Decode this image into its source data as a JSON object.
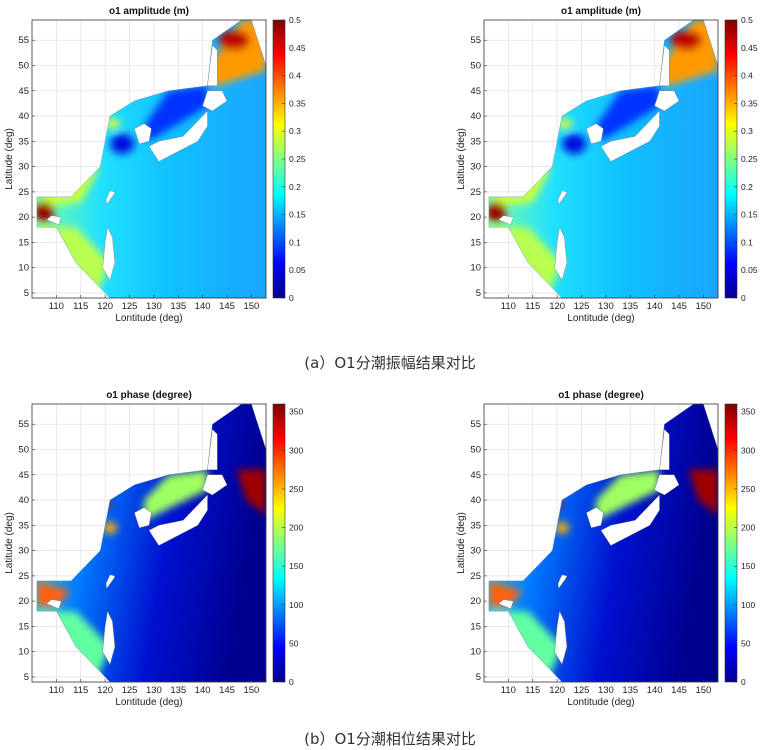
{
  "captions": {
    "a": "(a）O1分潮振幅结果对比",
    "b": "(b）O1分潮相位结果对比"
  },
  "colors": {
    "land": "#ffffff",
    "grid": "#e3e3e3",
    "axis": "#333333"
  },
  "chart_data": [
    {
      "type": "heatmap",
      "title": "o1 amplitude (m)",
      "xlabel": "Lontitude (deg)",
      "ylabel": "Latitude (deg)",
      "xlim": [
        105,
        153
      ],
      "ylim": [
        4,
        59
      ],
      "xticks": [
        110,
        115,
        120,
        125,
        130,
        135,
        140,
        145,
        150
      ],
      "yticks": [
        5,
        10,
        15,
        20,
        25,
        30,
        35,
        40,
        45,
        50,
        55
      ],
      "colorbar": {
        "range": [
          0,
          0.5
        ],
        "ticks": [
          "0",
          "0.05",
          "0.1",
          "0.15",
          "0.2",
          "0.25",
          "0.3",
          "0.35",
          "0.4",
          "0.45",
          "0.5"
        ]
      },
      "grid": true
    },
    {
      "type": "heatmap",
      "title": "o1 amplitude (m)",
      "xlabel": "Lontitude (deg)",
      "ylabel": "Latitude (deg)",
      "xlim": [
        105,
        153
      ],
      "ylim": [
        4,
        59
      ],
      "xticks": [
        110,
        115,
        120,
        125,
        130,
        135,
        140,
        145,
        150
      ],
      "yticks": [
        5,
        10,
        15,
        20,
        25,
        30,
        35,
        40,
        45,
        50,
        55
      ],
      "colorbar": {
        "range": [
          0,
          0.5
        ],
        "ticks": [
          "0",
          "0.05",
          "0.1",
          "0.15",
          "0.2",
          "0.25",
          "0.3",
          "0.35",
          "0.4",
          "0.45",
          "0.5"
        ]
      },
      "grid": true
    },
    {
      "type": "heatmap",
      "title": "o1 phase (degree)",
      "xlabel": "Lontitude (deg)",
      "ylabel": "Latitude (deg)",
      "xlim": [
        105,
        153
      ],
      "ylim": [
        4,
        59
      ],
      "xticks": [
        110,
        115,
        120,
        125,
        130,
        135,
        140,
        145,
        150
      ],
      "yticks": [
        5,
        10,
        15,
        20,
        25,
        30,
        35,
        40,
        45,
        50,
        55
      ],
      "colorbar": {
        "range": [
          0,
          360
        ],
        "ticks": [
          "0",
          "50",
          "100",
          "150",
          "200",
          "250",
          "300",
          "350"
        ]
      },
      "grid": true
    },
    {
      "type": "heatmap",
      "title": "o1 phase (degree)",
      "xlabel": "Lontitude (deg)",
      "ylabel": "Latitude (deg)",
      "xlim": [
        105,
        153
      ],
      "ylim": [
        4,
        59
      ],
      "xticks": [
        110,
        115,
        120,
        125,
        130,
        135,
        140,
        145,
        150
      ],
      "yticks": [
        5,
        10,
        15,
        20,
        25,
        30,
        35,
        40,
        45,
        50,
        55
      ],
      "colorbar": {
        "range": [
          0,
          360
        ],
        "ticks": [
          "0",
          "50",
          "100",
          "150",
          "200",
          "250",
          "300",
          "350"
        ]
      },
      "grid": true
    }
  ]
}
